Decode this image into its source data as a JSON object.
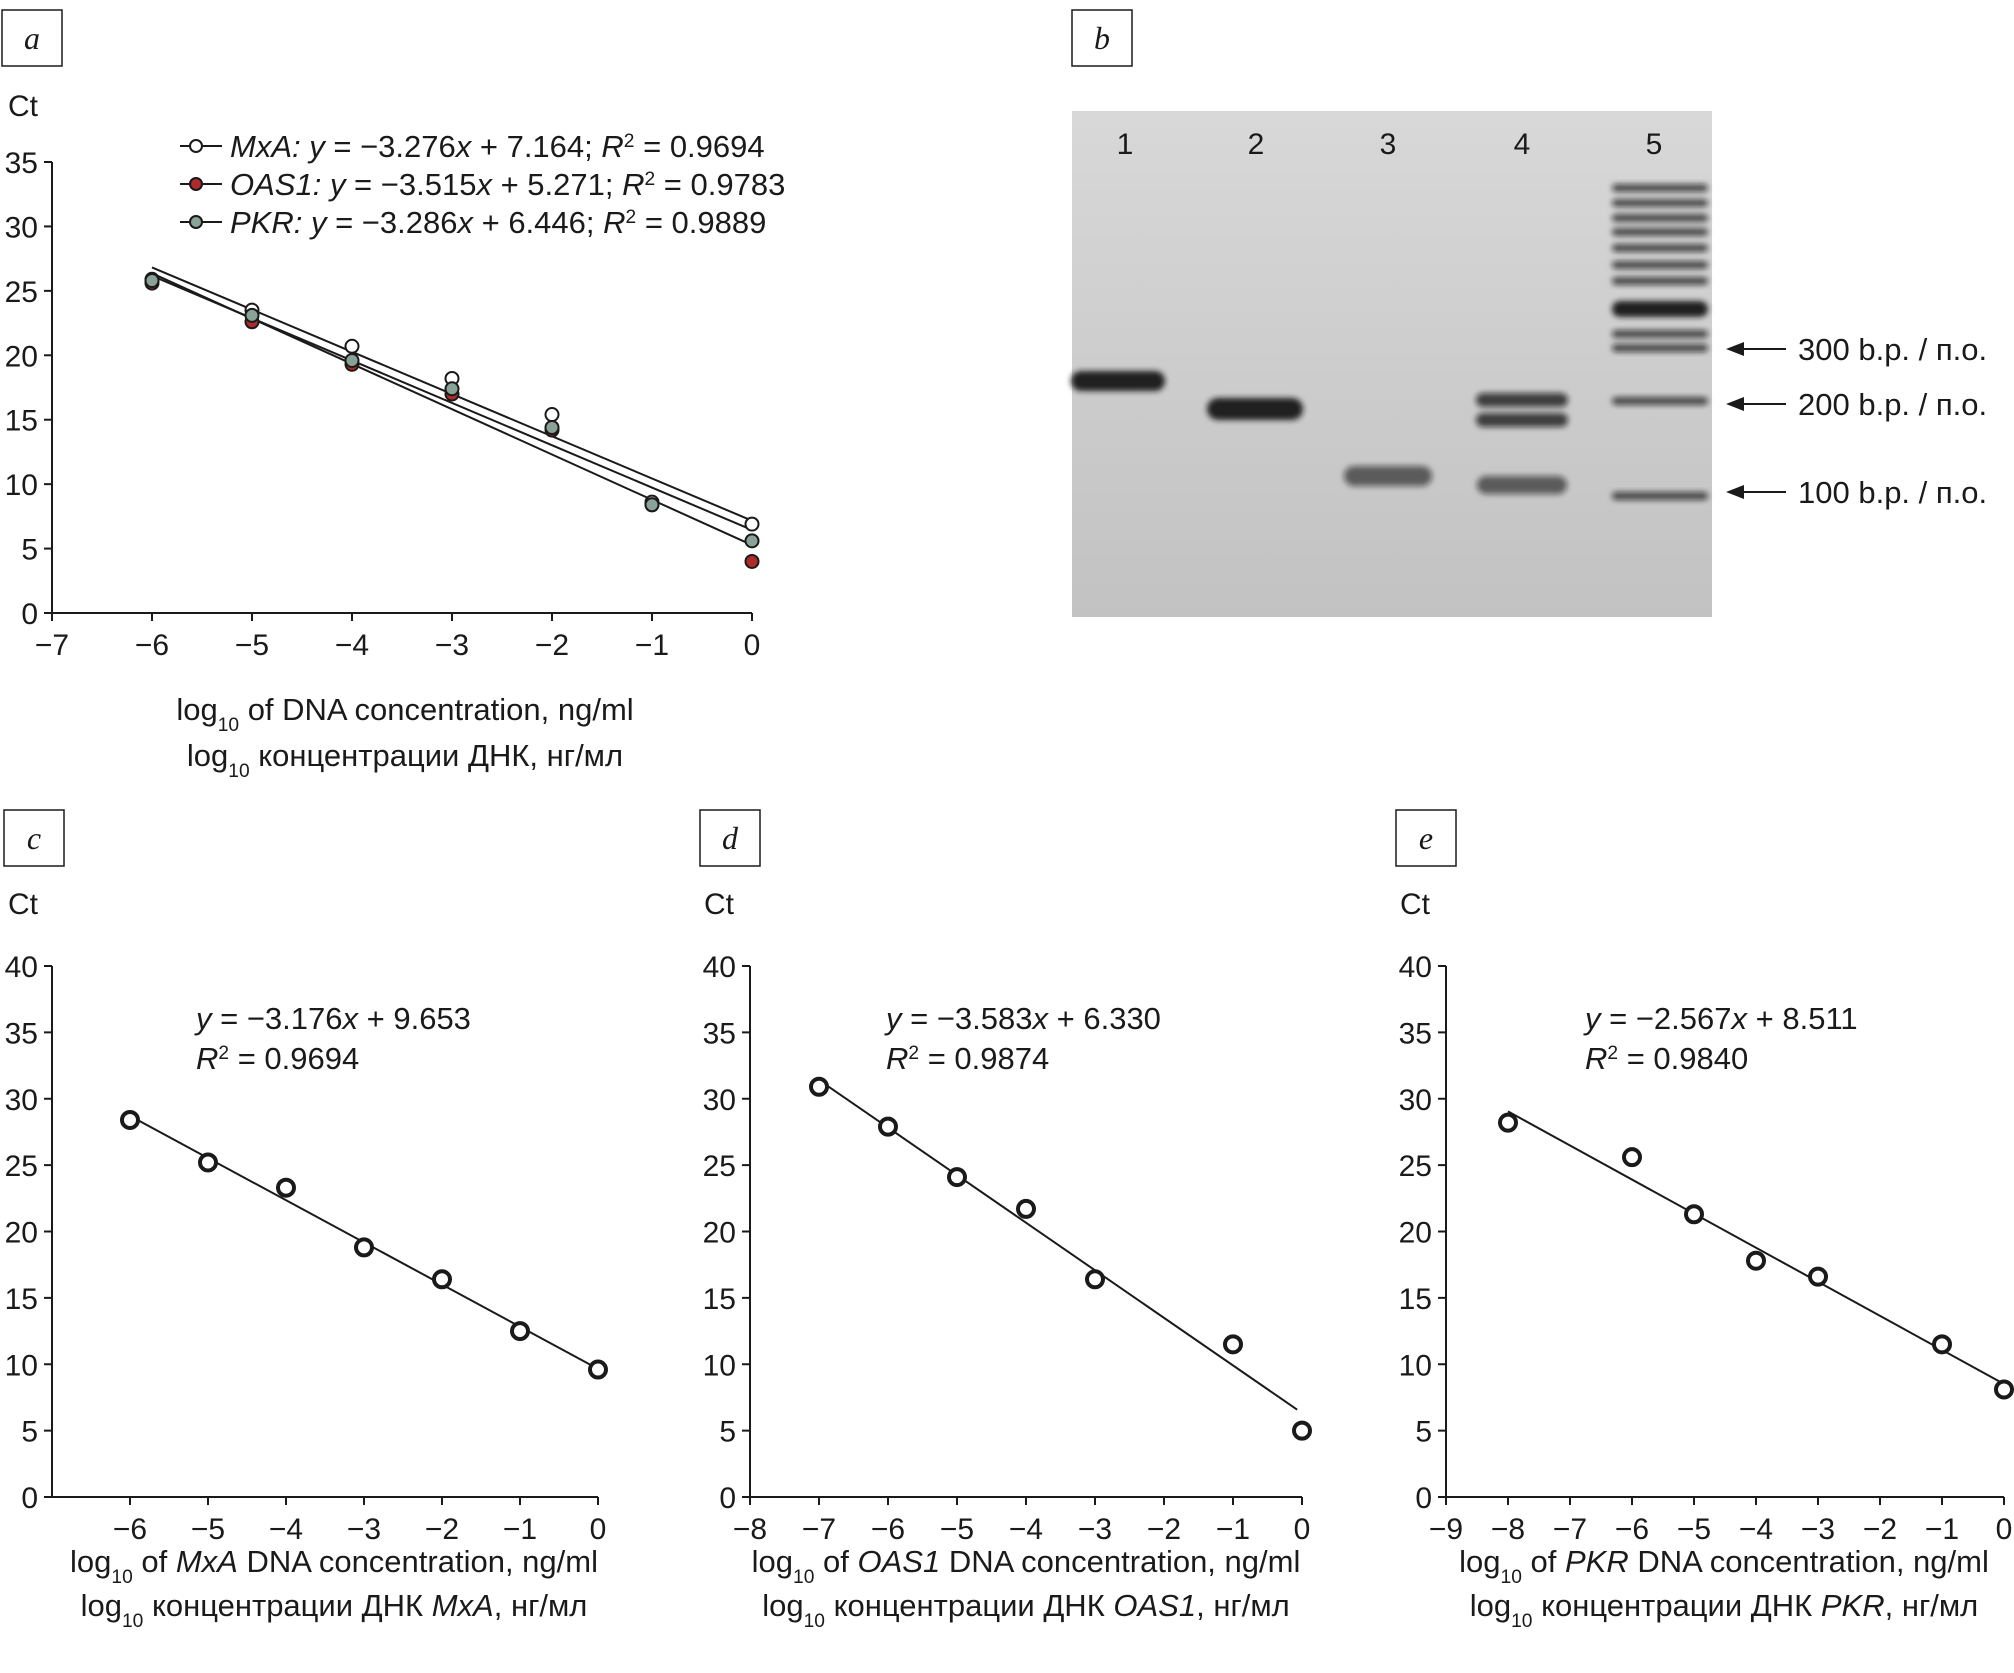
{
  "chart_data": [
    {
      "panel": "a",
      "type": "scatter",
      "ylabel": "Ct",
      "xlabel": [
        "log10 of DNA concentration, ng/ml",
        "log10 концентрации ДНК, нг/мл"
      ],
      "xlim": [
        -7,
        0
      ],
      "ylim": [
        0,
        35
      ],
      "xticks": [
        "−7",
        "−6",
        "−5",
        "−4",
        "−3",
        "−2",
        "−1",
        "0"
      ],
      "yticks": [
        "0",
        "5",
        "10",
        "15",
        "20",
        "25",
        "30",
        "35"
      ],
      "legend_position": "top",
      "series": [
        {
          "name": "MxA",
          "color": "#ffffff",
          "slope": -3.276,
          "intercept": 7.164,
          "legend": {
            "gene": "MxA:",
            "eq": "y = −3.276x + 7.164;",
            "r2": "R² = 0.9694"
          },
          "x": [
            -6,
            -5,
            -4,
            -3,
            -2,
            -1,
            0
          ],
          "y": [
            25.9,
            23.5,
            20.7,
            18.2,
            15.4,
            8.6,
            6.9
          ]
        },
        {
          "name": "OAS1",
          "color": "#b02a2a",
          "slope": -3.515,
          "intercept": 5.271,
          "legend": {
            "gene": "OAS1:",
            "eq": "y = −3.515x + 5.271;",
            "r2": "R² = 0.9783"
          },
          "x": [
            -6,
            -5,
            -4,
            -3,
            -2,
            -1,
            0
          ],
          "y": [
            25.6,
            22.6,
            19.3,
            17.0,
            14.2,
            8.4,
            4.0
          ]
        },
        {
          "name": "PKR",
          "color": "#8aa398",
          "slope": -3.286,
          "intercept": 6.446,
          "legend": {
            "gene": "PKR:",
            "eq": "y = −3.286x + 6.446;",
            "r2": "R² = 0.9889"
          },
          "x": [
            -6,
            -5,
            -4,
            -3,
            -2,
            -1,
            0
          ],
          "y": [
            25.8,
            23.1,
            19.6,
            17.4,
            14.4,
            8.4,
            5.6
          ]
        }
      ]
    },
    {
      "panel": "c",
      "type": "scatter",
      "ylabel": "Ct",
      "xlabel": [
        "log10 of MxA DNA concentration, ng/ml",
        "log10 концентрации ДНК MxA, нг/мл"
      ],
      "xlim": [
        -7,
        0
      ],
      "ylim": [
        0,
        40
      ],
      "xticks": [
        "−6",
        "−5",
        "−4",
        "−3",
        "−2",
        "−1",
        "0"
      ],
      "yticks": [
        "0",
        "5",
        "10",
        "15",
        "20",
        "25",
        "30",
        "35",
        "40"
      ],
      "equation": "y = −3.176x + 9.653",
      "r2": "R² = 0.9694",
      "slope": -3.176,
      "intercept": 9.653,
      "x": [
        -6,
        -5,
        -4,
        -3,
        -2,
        -1,
        0
      ],
      "y": [
        28.4,
        25.2,
        23.3,
        18.8,
        16.4,
        12.5,
        9.6
      ]
    },
    {
      "panel": "d",
      "type": "scatter",
      "ylabel": "Ct",
      "xlabel": [
        "log10 of OAS1 DNA concentration, ng/ml",
        "log10 концентрации ДНК OAS1, нг/мл"
      ],
      "xlim": [
        -8,
        0
      ],
      "ylim": [
        0,
        40
      ],
      "xticks": [
        "−8",
        "−7",
        "−6",
        "−5",
        "−4",
        "−3",
        "−2",
        "−1",
        "0"
      ],
      "yticks": [
        "0",
        "5",
        "10",
        "15",
        "20",
        "25",
        "30",
        "35",
        "40"
      ],
      "equation": "y = −3.583x + 6.330",
      "r2": "R² = 0.9874",
      "slope": -3.583,
      "intercept": 6.33,
      "x": [
        -7,
        -6,
        -5,
        -4,
        -3,
        -1,
        0
      ],
      "y": [
        30.9,
        27.9,
        24.1,
        21.7,
        16.4,
        11.5,
        5.0
      ]
    },
    {
      "panel": "e",
      "type": "scatter",
      "ylabel": "Ct",
      "xlabel": [
        "log10 of PKR DNA concentration, ng/ml",
        "log10 концентрации ДНК PKR, нг/мл"
      ],
      "xlim": [
        -9,
        0
      ],
      "ylim": [
        0,
        40
      ],
      "xticks": [
        "−9",
        "−8",
        "−7",
        "−6",
        "−5",
        "−4",
        "−3",
        "−2",
        "−1",
        "0"
      ],
      "yticks": [
        "0",
        "5",
        "10",
        "15",
        "20",
        "25",
        "30",
        "35",
        "40"
      ],
      "equation": "y = −2.567x + 8.511",
      "r2": "R² = 0.9840",
      "slope": -2.567,
      "intercept": 8.511,
      "x": [
        -8,
        -6,
        -5,
        -4,
        -3,
        -1,
        0
      ],
      "y": [
        28.2,
        25.6,
        21.3,
        17.8,
        16.6,
        11.5,
        8.1
      ]
    }
  ],
  "gel": {
    "panel": "b",
    "lanes": [
      "1",
      "2",
      "3",
      "4",
      "5"
    ],
    "markers": [
      "300 b.p. / п.о.",
      "200 b.p. / п.о.",
      "100 b.p. / п.о."
    ]
  },
  "colors": {
    "text": "#1a1a1a",
    "gel_background": "#d0d0d0",
    "band": "#141414"
  }
}
